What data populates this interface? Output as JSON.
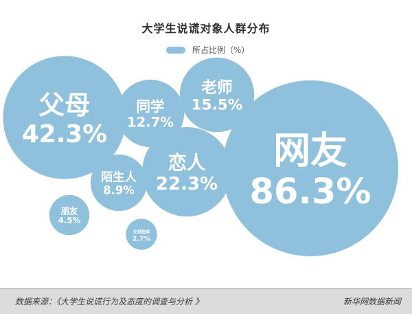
{
  "chart_data": {
    "type": "bubble",
    "title": "大学生说谎对象人群分布",
    "legend": {
      "label": "所占比例（%）",
      "color": "#8fc0dc",
      "position": "top-center"
    },
    "unit": "%",
    "bubble_color": "#8fc0dc",
    "text_color": "#ffffff",
    "series": [
      {
        "label": "网友",
        "value": 86.3,
        "display": "86.3%"
      },
      {
        "label": "父母",
        "value": 42.3,
        "display": "42.3%"
      },
      {
        "label": "恋人",
        "value": 22.3,
        "display": "22.3%"
      },
      {
        "label": "老师",
        "value": 15.5,
        "display": "15.5%"
      },
      {
        "label": "同学",
        "value": 12.7,
        "display": "12.7%"
      },
      {
        "label": "陌生人",
        "value": 8.9,
        "display": "8.9%"
      },
      {
        "label": "朋友",
        "value": 4.5,
        "display": "4.5%"
      },
      {
        "label": "兄弟姐妹",
        "value": 2.7,
        "display": "2.7%"
      }
    ]
  },
  "footer": {
    "source": "数据来源：《大学生说谎行为及态度的调查与分析 》",
    "credit": "新华网数据新闻"
  }
}
